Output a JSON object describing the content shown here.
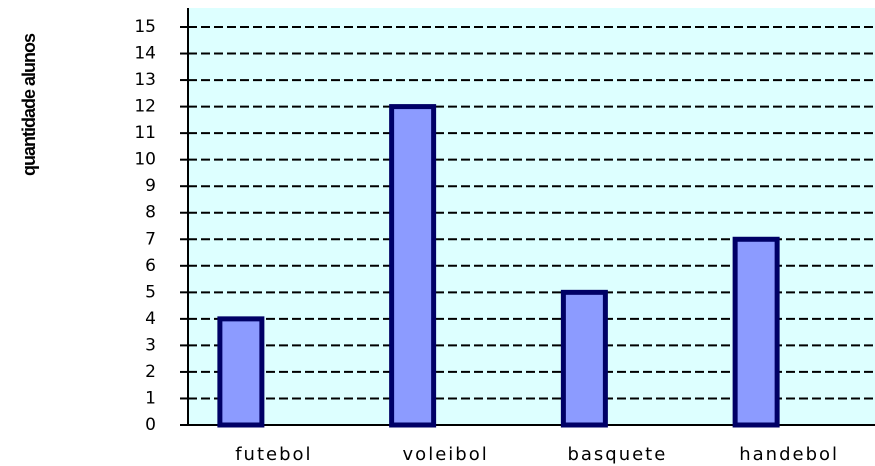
{
  "chart_data": {
    "type": "bar",
    "y_label": "quantidade alunos",
    "categories": [
      "futebol",
      "voleibol",
      "basquete",
      "handebol"
    ],
    "values": [
      4,
      12,
      5,
      7
    ],
    "color": "#8c9bff",
    "ylim": [
      0,
      15
    ],
    "yticks": [
      0,
      1,
      2,
      3,
      4,
      5,
      6,
      7,
      8,
      9,
      10,
      11,
      12,
      13,
      14,
      15
    ],
    "grid": true
  }
}
